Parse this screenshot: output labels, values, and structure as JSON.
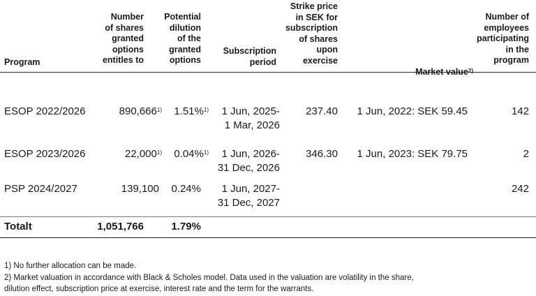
{
  "headers": {
    "program": "Program",
    "shares": "Number\nof shares\ngranted\noptions\nentitles to",
    "dilution": "Potential\ndilution\nof the\ngranted\noptions",
    "period": "Subscription\nperiod",
    "strike": "Strike price\nin SEK for\nsubscription\nof shares\nupon\nexercise",
    "market": "Market value",
    "market_sup": "2)",
    "employees": "Number of\nemployees\nparticipating\nin the\nprogram"
  },
  "rows": [
    {
      "program": "ESOP 2022/2026",
      "shares": "890,666",
      "shares_sup": "1)",
      "dilution": "1.51%",
      "dilution_sup": "1)",
      "period": "1 Jun, 2025-\n1 Mar, 2026",
      "strike": "237.40",
      "market": "1 Jun, 2022: SEK 59.45",
      "employees": "142"
    },
    {
      "program": "ESOP 2023/2026",
      "shares": "22,000",
      "shares_sup": "1)",
      "dilution": "0.04%",
      "dilution_sup": "1)",
      "period": "1 Jun, 2026-\n31 Dec, 2026",
      "strike": "346.30",
      "market": "1 Jun, 2023: SEK 79.75",
      "employees": "2"
    },
    {
      "program": "PSP 2024/2027",
      "shares": "139,100",
      "shares_sup": "",
      "dilution": "0.24%",
      "dilution_sup": "",
      "period": "1 Jun, 2027-\n31 Dec, 2027",
      "strike": "",
      "market": "",
      "employees": "242"
    }
  ],
  "total": {
    "label": "Totalt",
    "shares": "1,051,766",
    "dilution": "1.79%"
  },
  "footnotes": [
    "1) No further allocation can be made.",
    "2) Market valuation in accordance with Black & Scholes model. Data used in the valuation are volatility in the share,\n    dilution effect, subscription price at exercise, interest rate and the term for the warrants."
  ]
}
